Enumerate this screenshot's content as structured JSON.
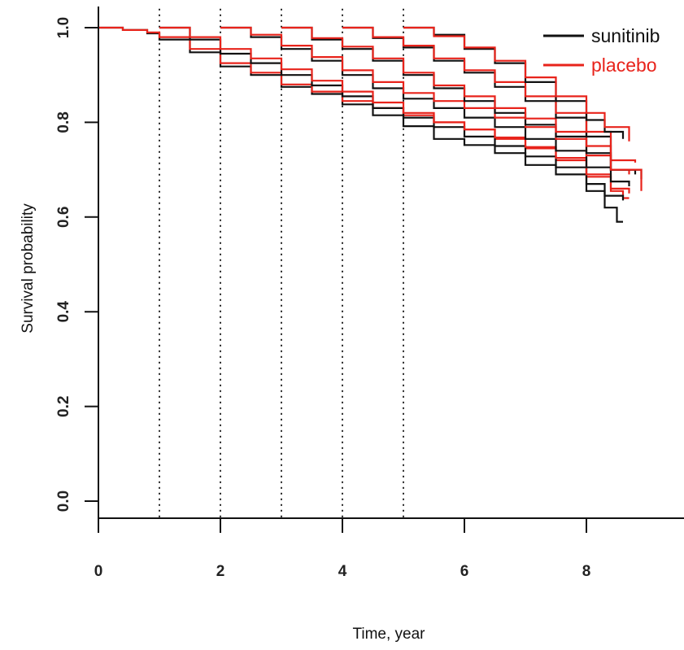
{
  "chart_data": {
    "type": "line",
    "title": "",
    "xlabel": "Time, year",
    "ylabel": "Survival probability",
    "xlim": [
      0,
      9.6
    ],
    "ylim": [
      -0.04,
      1.04
    ],
    "x_ticks": [
      0,
      2,
      4,
      6,
      8
    ],
    "x_tick_labels": [
      "0",
      "2",
      "4",
      "6",
      "8"
    ],
    "y_ticks": [
      0.0,
      0.2,
      0.4,
      0.6,
      0.8,
      1.0
    ],
    "y_tick_labels": [
      "0.0",
      "0.2",
      "0.4",
      "0.6",
      "0.8",
      "1.0"
    ],
    "landmark_lines_x": [
      1,
      2,
      3,
      4,
      5
    ],
    "grid": false,
    "legend_position": "top-right",
    "legend": [
      {
        "label": "sunitinib",
        "color": "#111111"
      },
      {
        "label": "placebo",
        "color": "#e8231b"
      }
    ],
    "series": [
      {
        "name": "sunitinib",
        "landmark": 0,
        "color": "#111111",
        "x": [
          0,
          0.4,
          0.8,
          1.0,
          1.5,
          2.0,
          2.5,
          3.0,
          3.5,
          4.0,
          4.5,
          5.0,
          5.5,
          6.0,
          6.5,
          7.0,
          7.5,
          8.0,
          8.3,
          8.5,
          8.6
        ],
        "y": [
          1.0,
          0.995,
          0.988,
          0.975,
          0.948,
          0.918,
          0.9,
          0.875,
          0.86,
          0.838,
          0.815,
          0.792,
          0.765,
          0.752,
          0.735,
          0.71,
          0.69,
          0.655,
          0.62,
          0.59,
          0.59
        ]
      },
      {
        "name": "placebo",
        "landmark": 0,
        "color": "#e8231b",
        "x": [
          0,
          0.4,
          0.8,
          1.0,
          1.5,
          2.0,
          2.5,
          3.0,
          3.5,
          4.0,
          4.5,
          5.0,
          5.5,
          6.0,
          6.5,
          7.0,
          7.5,
          8.0,
          8.4,
          8.6,
          8.7
        ],
        "y": [
          1.0,
          0.995,
          0.99,
          0.98,
          0.955,
          0.925,
          0.905,
          0.88,
          0.865,
          0.845,
          0.83,
          0.815,
          0.8,
          0.785,
          0.765,
          0.745,
          0.72,
          0.685,
          0.655,
          0.64,
          0.64
        ]
      },
      {
        "name": "sunitinib",
        "landmark": 1,
        "color": "#111111",
        "x": [
          1.0,
          1.5,
          2.0,
          2.5,
          3.0,
          3.5,
          4.0,
          4.5,
          5.0,
          5.5,
          6.0,
          6.5,
          7.0,
          7.5,
          8.0,
          8.3,
          8.6
        ],
        "y": [
          1.0,
          0.975,
          0.945,
          0.925,
          0.9,
          0.878,
          0.855,
          0.83,
          0.81,
          0.79,
          0.77,
          0.75,
          0.728,
          0.705,
          0.67,
          0.645,
          0.635
        ]
      },
      {
        "name": "placebo",
        "landmark": 1,
        "color": "#e8231b",
        "x": [
          1.0,
          1.5,
          2.0,
          2.5,
          3.0,
          3.5,
          4.0,
          4.5,
          5.0,
          5.5,
          6.0,
          6.5,
          7.0,
          7.5,
          8.0,
          8.4,
          8.7
        ],
        "y": [
          1.0,
          0.98,
          0.955,
          0.935,
          0.912,
          0.888,
          0.865,
          0.842,
          0.82,
          0.8,
          0.785,
          0.768,
          0.748,
          0.725,
          0.69,
          0.66,
          0.65
        ]
      },
      {
        "name": "sunitinib",
        "landmark": 2,
        "color": "#111111",
        "x": [
          2.0,
          2.5,
          3.0,
          3.5,
          4.0,
          4.5,
          5.0,
          5.5,
          6.0,
          6.5,
          7.0,
          7.5,
          8.0,
          8.4,
          8.7
        ],
        "y": [
          1.0,
          0.98,
          0.955,
          0.93,
          0.9,
          0.872,
          0.85,
          0.83,
          0.81,
          0.79,
          0.765,
          0.74,
          0.705,
          0.675,
          0.665
        ]
      },
      {
        "name": "placebo",
        "landmark": 2,
        "color": "#e8231b",
        "x": [
          2.0,
          2.5,
          3.0,
          3.5,
          4.0,
          4.5,
          5.0,
          5.5,
          6.0,
          6.5,
          7.0,
          7.5,
          8.0,
          8.4,
          8.7
        ],
        "y": [
          1.0,
          0.985,
          0.962,
          0.938,
          0.91,
          0.885,
          0.862,
          0.845,
          0.83,
          0.81,
          0.79,
          0.765,
          0.73,
          0.7,
          0.69
        ]
      },
      {
        "name": "sunitinib",
        "landmark": 3,
        "color": "#111111",
        "x": [
          3.0,
          3.5,
          4.0,
          4.5,
          5.0,
          5.5,
          6.0,
          6.5,
          7.0,
          7.5,
          8.0,
          8.4,
          8.8
        ],
        "y": [
          1.0,
          0.975,
          0.955,
          0.93,
          0.9,
          0.872,
          0.845,
          0.82,
          0.795,
          0.77,
          0.735,
          0.7,
          0.69
        ]
      },
      {
        "name": "placebo",
        "landmark": 3,
        "color": "#e8231b",
        "x": [
          3.0,
          3.5,
          4.0,
          4.5,
          5.0,
          5.5,
          6.0,
          6.5,
          7.0,
          7.5,
          8.0,
          8.4,
          8.8
        ],
        "y": [
          1.0,
          0.978,
          0.96,
          0.935,
          0.905,
          0.878,
          0.855,
          0.83,
          0.808,
          0.78,
          0.75,
          0.72,
          0.715
        ]
      },
      {
        "name": "sunitinib",
        "landmark": 4,
        "color": "#111111",
        "x": [
          4.0,
          4.5,
          5.0,
          5.5,
          6.0,
          6.5,
          7.0,
          7.5,
          8.0,
          8.4,
          8.9
        ],
        "y": [
          1.0,
          0.978,
          0.958,
          0.93,
          0.905,
          0.875,
          0.845,
          0.81,
          0.77,
          0.7,
          0.68
        ]
      },
      {
        "name": "placebo",
        "landmark": 4,
        "color": "#e8231b",
        "x": [
          4.0,
          4.5,
          5.0,
          5.5,
          6.0,
          6.5,
          7.0,
          7.5,
          8.0,
          8.4,
          8.9
        ],
        "y": [
          1.0,
          0.98,
          0.962,
          0.935,
          0.91,
          0.885,
          0.855,
          0.82,
          0.78,
          0.7,
          0.655
        ]
      },
      {
        "name": "sunitinib",
        "landmark": 5,
        "color": "#111111",
        "x": [
          5.0,
          5.5,
          6.0,
          6.5,
          7.0,
          7.5,
          8.0,
          8.3,
          8.6
        ],
        "y": [
          1.0,
          0.985,
          0.955,
          0.925,
          0.885,
          0.845,
          0.805,
          0.78,
          0.765
        ]
      },
      {
        "name": "placebo",
        "landmark": 5,
        "color": "#e8231b",
        "x": [
          5.0,
          5.5,
          6.0,
          6.5,
          7.0,
          7.5,
          8.0,
          8.3,
          8.7
        ],
        "y": [
          1.0,
          0.982,
          0.958,
          0.93,
          0.895,
          0.855,
          0.82,
          0.79,
          0.76
        ]
      }
    ]
  }
}
